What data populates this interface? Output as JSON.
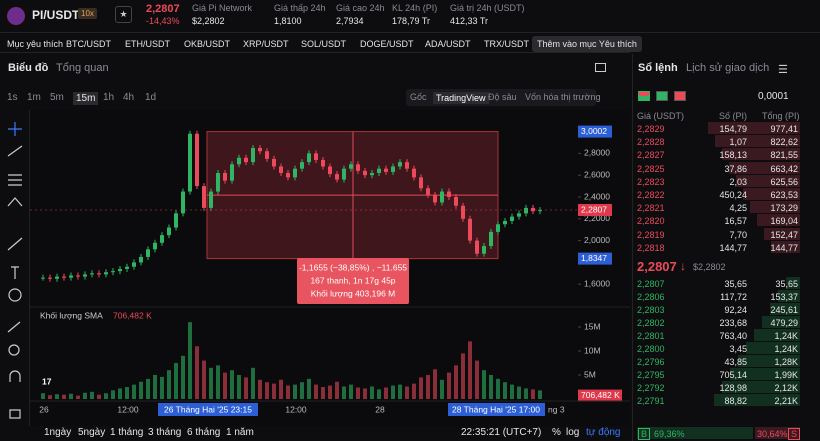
{
  "header": {
    "pair": "PI/USDT",
    "leverage": "10x",
    "price": "2,2807",
    "change": "-14,43%",
    "stats": [
      {
        "label": "Giá Pi Network",
        "value": "$2,2802"
      },
      {
        "label": "Giá thấp 24h",
        "value": "1,8100"
      },
      {
        "label": "Giá cao 24h",
        "value": "2,7934"
      },
      {
        "label": "KL 24h (PI)",
        "value": "178,79 Tr"
      },
      {
        "label": "Giá trị 24h (USDT)",
        "value": "412,33 Tr"
      }
    ]
  },
  "favorites": {
    "label": "Mục yêu thích",
    "pairs": [
      "BTC/USDT",
      "ETH/USDT",
      "OKB/USDT",
      "XRP/USDT",
      "SOL/USDT",
      "DOGE/USDT",
      "ADA/USDT",
      "TRX/USDT"
    ],
    "add": "Thêm vào mục Yêu thích"
  },
  "tabs": [
    "Biểu đồ",
    "Tổng quan"
  ],
  "intervals": [
    "1s",
    "1m",
    "5m",
    "15m",
    "1h",
    "4h",
    "1d"
  ],
  "views": [
    "Gốc",
    "TradingView",
    "Độ sâu",
    "Vốn hóa thị trường"
  ],
  "chart": {
    "ylim": [
      1.4,
      3.1
    ],
    "price_ticks": [
      {
        "value": 2.8,
        "label": "2,8000"
      },
      {
        "value": 2.6,
        "label": "2,6000"
      },
      {
        "value": 2.4,
        "label": "2,4000"
      },
      {
        "value": 2.2,
        "label": "2,2000"
      },
      {
        "value": 2.0,
        "label": "2,0000"
      },
      {
        "value": 1.6,
        "label": "1,6000"
      }
    ],
    "range_high": {
      "value": 3.0002,
      "label": "3,0002"
    },
    "range_low": {
      "value": 1.8347,
      "label": "1,8347"
    },
    "current": {
      "value": 2.2807,
      "label": "2,2807"
    },
    "measure": [
      "-1,1655 (−38,85%) , −11.655",
      "167 thanh, 1n 17g 45p",
      "Khối lượng 403,196 M"
    ],
    "volume_title": "Khối lượng SMA",
    "volume_ylim": [
      0,
      17
    ],
    "volume_ticks": [
      {
        "value": 15,
        "label": "15M"
      },
      {
        "value": 10,
        "label": "10M"
      },
      {
        "value": 5,
        "label": "5M"
      }
    ],
    "volume_sma": {
      "value": 0.706482,
      "label": "706,482 K"
    },
    "time_labels": [
      "26",
      "12:00",
      "12:00",
      "28"
    ],
    "cross_start": "26 Tháng Hai '25  23:15",
    "cross_end": "28 Tháng Hai '25  17:00",
    "time_tail": "ng 3",
    "closes": [
      1.66,
      1.65,
      1.67,
      1.66,
      1.68,
      1.67,
      1.69,
      1.7,
      1.69,
      1.71,
      1.72,
      1.74,
      1.76,
      1.8,
      1.85,
      1.92,
      1.98,
      2.05,
      2.12,
      2.25,
      2.45,
      2.98,
      2.5,
      2.3,
      2.45,
      2.62,
      2.55,
      2.7,
      2.76,
      2.72,
      2.85,
      2.82,
      2.75,
      2.68,
      2.62,
      2.58,
      2.66,
      2.72,
      2.8,
      2.74,
      2.68,
      2.61,
      2.56,
      2.66,
      2.7,
      2.64,
      2.6,
      2.62,
      2.66,
      2.63,
      2.68,
      2.72,
      2.66,
      2.58,
      2.48,
      2.42,
      2.35,
      2.45,
      2.4,
      2.32,
      2.2,
      2.0,
      1.88,
      1.95,
      2.08,
      2.15,
      2.18,
      2.22,
      2.25,
      2.3,
      2.27,
      2.28
    ],
    "volumes": [
      1.2,
      0.8,
      1.0,
      0.9,
      1.1,
      0.7,
      1.3,
      1.5,
      0.9,
      1.2,
      1.8,
      2.2,
      2.5,
      3.0,
      3.6,
      4.2,
      5.0,
      4.6,
      6.0,
      7.5,
      9.0,
      16.0,
      11.0,
      8.0,
      6.5,
      7.0,
      5.5,
      6.0,
      5.0,
      4.5,
      6.5,
      4.0,
      3.5,
      3.2,
      4.0,
      2.8,
      3.0,
      3.5,
      4.2,
      3.0,
      2.5,
      2.8,
      3.6,
      2.6,
      3.0,
      2.4,
      2.2,
      2.6,
      2.0,
      2.4,
      2.8,
      3.0,
      2.6,
      3.2,
      4.5,
      5.0,
      6.2,
      4.0,
      5.5,
      7.0,
      9.5,
      12.0,
      8.0,
      6.0,
      5.0,
      4.2,
      3.5,
      3.0,
      2.6,
      2.2,
      2.0,
      1.8
    ]
  },
  "footer": {
    "ranges": [
      "1ngày",
      "5ngày",
      "1 tháng",
      "3 tháng",
      "6 tháng",
      "1 năm"
    ],
    "time": "22:35:21 (UTC+7)",
    "percent": "%",
    "log": "log",
    "auto": "tự động"
  },
  "orderbook": {
    "tabs": [
      "Sổ lệnh",
      "Lịch sử giao dịch"
    ],
    "step": "0,0001",
    "columns": [
      "Giá (USDT)",
      "Số (PI)",
      "Tổng (PI)"
    ],
    "asks": [
      [
        "2,2829",
        "154,79",
        "977,41"
      ],
      [
        "2,2828",
        "1,07",
        "822,62"
      ],
      [
        "2,2827",
        "158,13",
        "821,55"
      ],
      [
        "2,2825",
        "37,86",
        "663,42"
      ],
      [
        "2,2823",
        "2,03",
        "625,56"
      ],
      [
        "2,2822",
        "450,24",
        "623,53"
      ],
      [
        "2,2821",
        "4,25",
        "173,29"
      ],
      [
        "2,2820",
        "16,57",
        "169,04"
      ],
      [
        "2,2819",
        "7,70",
        "152,47"
      ],
      [
        "2,2818",
        "144,77",
        "144,77"
      ]
    ],
    "last": "2,2807",
    "last_usd": "$2,2802",
    "bids": [
      [
        "2,2807",
        "35,65",
        "35,65"
      ],
      [
        "2,2806",
        "117,72",
        "153,37"
      ],
      [
        "2,2803",
        "92,24",
        "245,61"
      ],
      [
        "2,2802",
        "233,68",
        "479,29"
      ],
      [
        "2,2801",
        "763,40",
        "1,24K"
      ],
      [
        "2,2800",
        "3,45",
        "1,24K"
      ],
      [
        "2,2796",
        "43,85",
        "1,28K"
      ],
      [
        "2,2795",
        "705,14",
        "1,99K"
      ],
      [
        "2,2792",
        "128,98",
        "2,12K"
      ],
      [
        "2,2791",
        "88,82",
        "2,21K"
      ]
    ],
    "buy": "B",
    "buy_pct": "69,36%",
    "sell_pct": "30,64%",
    "sell": "S"
  }
}
